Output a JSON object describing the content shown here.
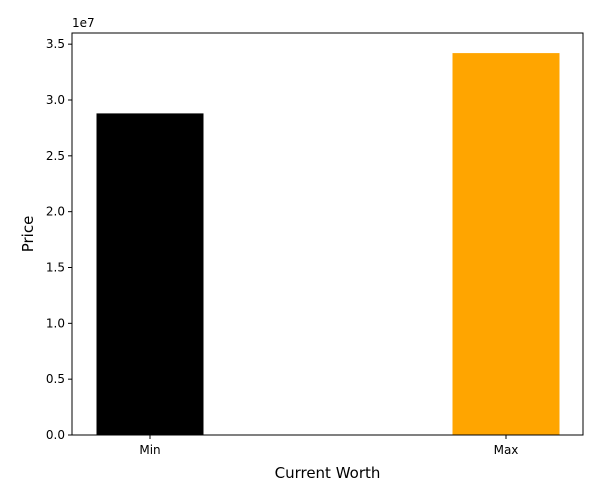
{
  "chart_data": {
    "type": "bar",
    "categories": [
      "Min",
      "Max"
    ],
    "values": [
      28800000,
      34200000
    ],
    "colors": [
      "#000000",
      "#ffa500"
    ],
    "title": "",
    "xlabel": "Current Worth",
    "ylabel": "Price",
    "ylim": [
      0,
      36000000
    ],
    "yticks": [
      0,
      5000000,
      10000000,
      15000000,
      20000000,
      25000000,
      30000000,
      35000000
    ],
    "ytick_labels": [
      "0.0",
      "0.5",
      "1.0",
      "1.5",
      "2.0",
      "2.5",
      "3.0",
      "3.5"
    ],
    "y_offset_label": "1e7",
    "grid": false,
    "legend": "none"
  }
}
